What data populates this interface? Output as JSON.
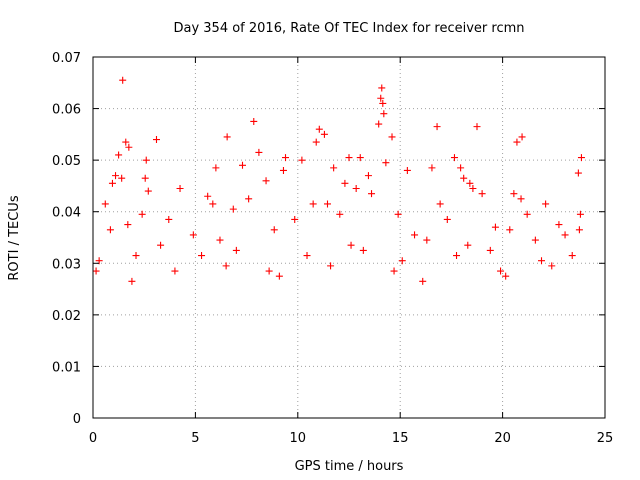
{
  "chart_data": {
    "type": "scatter",
    "title": "Day 354 of 2016, Rate Of TEC Index for receiver rcmn",
    "xlabel": "GPS time / hours",
    "ylabel": "ROTI / TECUs",
    "xlim": [
      0,
      25
    ],
    "ylim": [
      0,
      0.07
    ],
    "x_ticks": [
      0,
      5,
      10,
      15,
      20,
      25
    ],
    "y_ticks": [
      0,
      0.01,
      0.02,
      0.03,
      0.04,
      0.05,
      0.06,
      0.07
    ],
    "x_tick_labels": [
      "0",
      "5",
      "10",
      "15",
      "20",
      "25"
    ],
    "y_tick_labels": [
      "0",
      "0.01",
      "0.02",
      "0.03",
      "0.04",
      "0.05",
      "0.06",
      "0.07"
    ],
    "grid": true,
    "marker": "+",
    "color": "#ff0000",
    "series": [
      {
        "name": "ROTI",
        "points": [
          [
            1.45,
            0.0655
          ],
          [
            14.1,
            0.064
          ],
          [
            14.05,
            0.062
          ],
          [
            14.15,
            0.061
          ],
          [
            14.2,
            0.059
          ],
          [
            13.95,
            0.057
          ],
          [
            7.85,
            0.0575
          ],
          [
            16.8,
            0.0565
          ],
          [
            18.75,
            0.0565
          ],
          [
            11.05,
            0.056
          ],
          [
            11.3,
            0.055
          ],
          [
            20.95,
            0.0545
          ],
          [
            14.6,
            0.0545
          ],
          [
            1.6,
            0.0535
          ],
          [
            1.75,
            0.0525
          ],
          [
            3.1,
            0.054
          ],
          [
            6.55,
            0.0545
          ],
          [
            10.9,
            0.0535
          ],
          [
            20.7,
            0.0535
          ],
          [
            12.5,
            0.0505
          ],
          [
            8.1,
            0.0515
          ],
          [
            1.25,
            0.051
          ],
          [
            2.6,
            0.05
          ],
          [
            9.4,
            0.0505
          ],
          [
            13.05,
            0.0505
          ],
          [
            14.3,
            0.0495
          ],
          [
            17.65,
            0.0505
          ],
          [
            23.85,
            0.0505
          ],
          [
            1.1,
            0.047
          ],
          [
            1.4,
            0.0465
          ],
          [
            7.3,
            0.049
          ],
          [
            6.0,
            0.0485
          ],
          [
            9.3,
            0.048
          ],
          [
            10.2,
            0.05
          ],
          [
            11.75,
            0.0485
          ],
          [
            15.35,
            0.048
          ],
          [
            16.55,
            0.0485
          ],
          [
            17.95,
            0.0485
          ],
          [
            18.1,
            0.0465
          ],
          [
            18.4,
            0.0455
          ],
          [
            23.7,
            0.0475
          ],
          [
            2.55,
            0.0465
          ],
          [
            13.45,
            0.047
          ],
          [
            12.3,
            0.0455
          ],
          [
            8.45,
            0.046
          ],
          [
            4.25,
            0.0445
          ],
          [
            12.85,
            0.0445
          ],
          [
            20.55,
            0.0435
          ],
          [
            20.9,
            0.0425
          ],
          [
            2.7,
            0.044
          ],
          [
            0.95,
            0.0455
          ],
          [
            5.6,
            0.043
          ],
          [
            7.6,
            0.0425
          ],
          [
            18.55,
            0.0445
          ],
          [
            19.0,
            0.0435
          ],
          [
            0.6,
            0.0415
          ],
          [
            2.4,
            0.0395
          ],
          [
            5.85,
            0.0415
          ],
          [
            10.75,
            0.0415
          ],
          [
            11.45,
            0.0415
          ],
          [
            13.6,
            0.0435
          ],
          [
            16.95,
            0.0415
          ],
          [
            22.1,
            0.0415
          ],
          [
            21.2,
            0.0395
          ],
          [
            23.8,
            0.0395
          ],
          [
            12.05,
            0.0395
          ],
          [
            6.85,
            0.0405
          ],
          [
            3.7,
            0.0385
          ],
          [
            9.85,
            0.0385
          ],
          [
            14.9,
            0.0395
          ],
          [
            17.3,
            0.0385
          ],
          [
            19.65,
            0.037
          ],
          [
            22.75,
            0.0375
          ],
          [
            23.75,
            0.0365
          ],
          [
            0.85,
            0.0365
          ],
          [
            1.7,
            0.0375
          ],
          [
            4.9,
            0.0355
          ],
          [
            8.85,
            0.0365
          ],
          [
            15.7,
            0.0355
          ],
          [
            20.35,
            0.0365
          ],
          [
            21.6,
            0.0345
          ],
          [
            23.05,
            0.0355
          ],
          [
            3.3,
            0.0335
          ],
          [
            6.2,
            0.0345
          ],
          [
            12.6,
            0.0335
          ],
          [
            16.3,
            0.0345
          ],
          [
            18.3,
            0.0335
          ],
          [
            19.4,
            0.0325
          ],
          [
            0.3,
            0.0305
          ],
          [
            2.1,
            0.0315
          ],
          [
            5.3,
            0.0315
          ],
          [
            7.0,
            0.0325
          ],
          [
            10.45,
            0.0315
          ],
          [
            13.2,
            0.0325
          ],
          [
            15.1,
            0.0305
          ],
          [
            17.75,
            0.0315
          ],
          [
            21.9,
            0.0305
          ],
          [
            23.4,
            0.0315
          ],
          [
            0.15,
            0.0285
          ],
          [
            4.0,
            0.0285
          ],
          [
            6.5,
            0.0295
          ],
          [
            8.6,
            0.0285
          ],
          [
            11.6,
            0.0295
          ],
          [
            14.7,
            0.0285
          ],
          [
            19.9,
            0.0285
          ],
          [
            22.4,
            0.0295
          ],
          [
            1.9,
            0.0265
          ],
          [
            9.1,
            0.0275
          ],
          [
            16.1,
            0.0265
          ],
          [
            20.15,
            0.0275
          ]
        ]
      }
    ]
  }
}
